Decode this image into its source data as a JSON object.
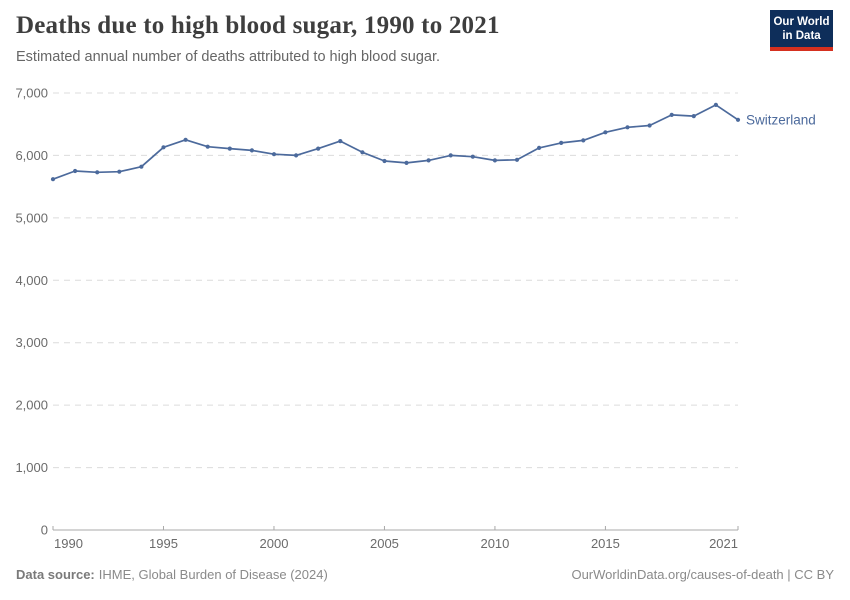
{
  "header": {
    "logo": {
      "line1": "Our World",
      "line2": "in Data",
      "bg_color": "#0e2e5a",
      "accent_color": "#d5301f"
    }
  },
  "chart_data": {
    "type": "line",
    "title": "Deaths due to high blood sugar, 1990 to 2021",
    "subtitle": "Estimated annual number of deaths attributed to high blood sugar.",
    "x": [
      1990,
      1991,
      1992,
      1993,
      1994,
      1995,
      1996,
      1997,
      1998,
      1999,
      2000,
      2001,
      2002,
      2003,
      2004,
      2005,
      2006,
      2007,
      2008,
      2009,
      2010,
      2011,
      2012,
      2013,
      2014,
      2015,
      2016,
      2017,
      2018,
      2019,
      2020,
      2021
    ],
    "series": [
      {
        "name": "Switzerland",
        "color": "#4C6A9C",
        "values": [
          5620,
          5750,
          5730,
          5740,
          5820,
          6130,
          6250,
          6140,
          6110,
          6080,
          6020,
          6000,
          6110,
          6230,
          6050,
          5910,
          5880,
          5920,
          6000,
          5980,
          5920,
          5930,
          6120,
          6200,
          6240,
          6370,
          6450,
          6480,
          6650,
          6630,
          6810,
          6570
        ]
      }
    ],
    "xlabel": "",
    "ylabel": "",
    "xlim": [
      1990,
      2021
    ],
    "ylim": [
      0,
      7000
    ],
    "xticks": [
      1990,
      1995,
      2000,
      2005,
      2010,
      2015,
      2021
    ],
    "yticks": [
      0,
      1000,
      2000,
      3000,
      4000,
      5000,
      6000,
      7000
    ],
    "ytick_labels": [
      "0",
      "1,000",
      "2,000",
      "3,000",
      "4,000",
      "5,000",
      "6,000",
      "7,000"
    ],
    "grid": "horizontal-dashed",
    "legend_position": "line-end-label"
  },
  "footer": {
    "source_label": "Data source:",
    "source_text": "IHME, Global Burden of Disease (2024)",
    "credit": "OurWorldinData.org/causes-of-death | CC BY"
  }
}
